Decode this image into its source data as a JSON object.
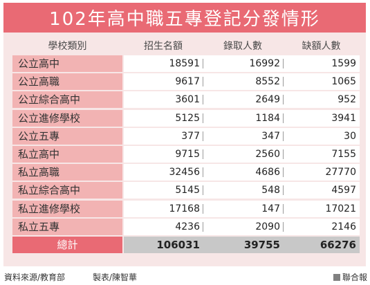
{
  "chart_data": {
    "type": "table",
    "title": "102年高中職五專登記分發情形",
    "columns": [
      "學校類別",
      "招生名額",
      "錄取人數",
      "缺額人數"
    ],
    "rows": [
      {
        "category": "公立高中",
        "values": [
          18591,
          16992,
          1599
        ]
      },
      {
        "category": "公立高職",
        "values": [
          9617,
          8552,
          1065
        ]
      },
      {
        "category": "公立綜合高中",
        "values": [
          3601,
          2649,
          952
        ]
      },
      {
        "category": "公立進修學校",
        "values": [
          5125,
          1184,
          3941
        ]
      },
      {
        "category": "公立五專",
        "values": [
          377,
          347,
          30
        ]
      },
      {
        "category": "私立高中",
        "values": [
          9715,
          2560,
          7155
        ]
      },
      {
        "category": "私立高職",
        "values": [
          32456,
          4686,
          27770
        ]
      },
      {
        "category": "私立綜合高中",
        "values": [
          5145,
          548,
          4597
        ]
      },
      {
        "category": "私立進修學校",
        "values": [
          17168,
          147,
          17021
        ]
      },
      {
        "category": "私立五專",
        "values": [
          4236,
          2090,
          2146
        ]
      }
    ],
    "total": {
      "category": "總計",
      "values": [
        106031,
        39755,
        66276
      ]
    }
  },
  "footer": {
    "source": "資料來源/教育部",
    "credit": "製表/陳智華",
    "brand": "聯合報"
  },
  "colors": {
    "title_bar": "#e96a74",
    "panel": "#f7e6e6",
    "category_cell": "#f2b3b3",
    "total_band": "#c8c8c8"
  }
}
